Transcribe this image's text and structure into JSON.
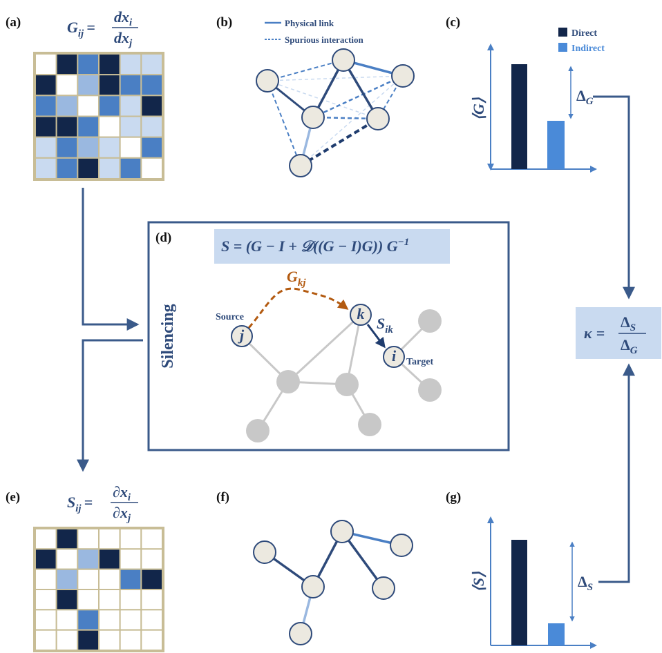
{
  "panels": {
    "a": "(a)",
    "b": "(b)",
    "c": "(c)",
    "d": "(d)",
    "e": "(e)",
    "f": "(f)",
    "g": "(g)"
  },
  "formula_a": {
    "lhs": "G",
    "lhs_sub": "ij",
    "eq": "=",
    "num": "dx",
    "num_sub": "i",
    "den": "dx",
    "den_sub": "j"
  },
  "legend_b": {
    "solid": "Physical link",
    "dashed": "Spurious interaction"
  },
  "legend_c": {
    "direct": "Direct",
    "indirect": "Indirect"
  },
  "axis_c": "⟨G⟩",
  "delta_c": {
    "symbol": "Δ",
    "sub": "G"
  },
  "formula_d": {
    "text": "S = (G − I + 𝒟((G − I)G)) G",
    "sup": "−1"
  },
  "silencing": "Silencing",
  "graph_d": {
    "source": "Source",
    "target": "Target",
    "j": "j",
    "k": "k",
    "i": "i",
    "gkj": {
      "symbol": "G",
      "sub": "kj"
    },
    "sik": {
      "symbol": "S",
      "sub": "ik"
    }
  },
  "formula_e": {
    "lhs": "S",
    "lhs_sub": "ij",
    "eq": "=",
    "num": "∂x",
    "num_sub": "i",
    "den": "∂x",
    "den_sub": "j"
  },
  "axis_g": "⟨S⟩",
  "delta_g": {
    "symbol": "Δ",
    "sub": "S"
  },
  "kappa": {
    "lhs": "κ",
    "eq": "=",
    "num": "Δ",
    "num_sub": "S",
    "den": "Δ",
    "den_sub": "G"
  }
}
